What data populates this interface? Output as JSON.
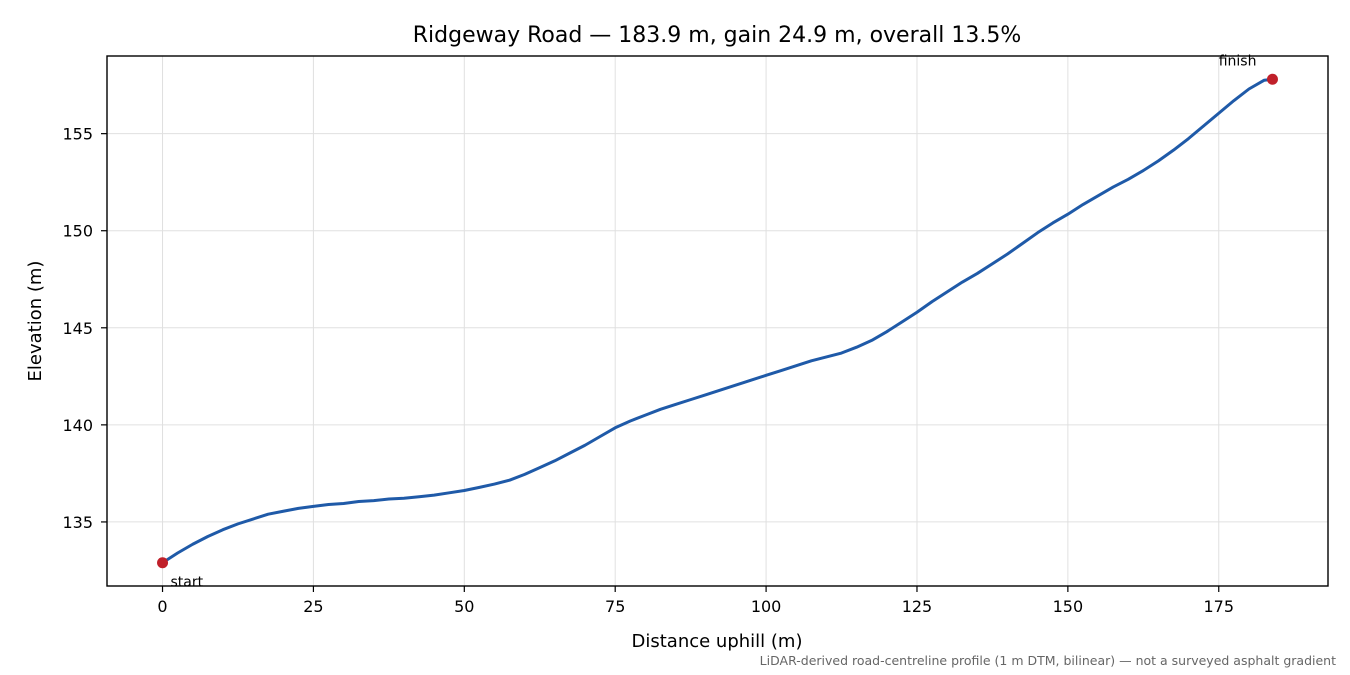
{
  "chart_data": {
    "type": "line",
    "title": "Ridgeway Road — 183.9 m, gain 24.9 m, overall 13.5%",
    "xlabel": "Distance uphill (m)",
    "ylabel": "Elevation (m)",
    "xlim": [
      -9.2,
      193.1
    ],
    "ylim": [
      131.7,
      159.0
    ],
    "xticks": [
      0,
      25,
      50,
      75,
      100,
      125,
      150,
      175
    ],
    "yticks": [
      135,
      140,
      145,
      150,
      155
    ],
    "grid": true,
    "series": [
      {
        "color": "#1f5aa8",
        "x": [
          0,
          2.5,
          5,
          7.5,
          10,
          12.5,
          15,
          17.5,
          20,
          22.5,
          25,
          27.5,
          30,
          32.5,
          35,
          37.5,
          40,
          42.5,
          45,
          47.5,
          50,
          52.5,
          55,
          57.5,
          60,
          62.5,
          65,
          67.5,
          70,
          72.5,
          75,
          77.5,
          80,
          82.5,
          85,
          87.5,
          90,
          92.5,
          95,
          97.5,
          100,
          102.5,
          105,
          107.5,
          110,
          112.5,
          115,
          117.5,
          120,
          122.5,
          125,
          127.5,
          130,
          132.5,
          135,
          137.5,
          140,
          142.5,
          145,
          147.5,
          150,
          152.5,
          155,
          157.5,
          160,
          162.5,
          165,
          167.5,
          170,
          172.5,
          175,
          177.5,
          180,
          182.5,
          183.9
        ],
        "y": [
          132.9,
          133.4,
          133.85,
          134.25,
          134.6,
          134.9,
          135.15,
          135.4,
          135.55,
          135.7,
          135.8,
          135.9,
          135.95,
          136.05,
          136.1,
          136.18,
          136.22,
          136.3,
          136.38,
          136.5,
          136.62,
          136.78,
          136.95,
          137.15,
          137.45,
          137.8,
          138.15,
          138.55,
          138.95,
          139.4,
          139.85,
          140.2,
          140.5,
          140.8,
          141.05,
          141.3,
          141.55,
          141.8,
          142.05,
          142.3,
          142.55,
          142.8,
          143.05,
          143.3,
          143.5,
          143.7,
          144.0,
          144.35,
          144.8,
          145.3,
          145.8,
          146.35,
          146.85,
          147.35,
          147.8,
          148.3,
          148.8,
          149.35,
          149.9,
          150.4,
          150.85,
          151.35,
          151.8,
          152.25,
          152.65,
          153.1,
          153.6,
          154.15,
          154.75,
          155.4,
          156.05,
          156.7,
          157.3,
          157.75,
          157.8
        ]
      }
    ],
    "markers": [
      {
        "label": "start",
        "x": 0,
        "y": 132.9,
        "color": "#c0202a"
      },
      {
        "label": "finish",
        "x": 183.9,
        "y": 157.8,
        "color": "#c0202a"
      }
    ],
    "footnote": "LiDAR-derived road-centreline profile (1 m DTM, bilinear) — not a surveyed asphalt gradient"
  }
}
